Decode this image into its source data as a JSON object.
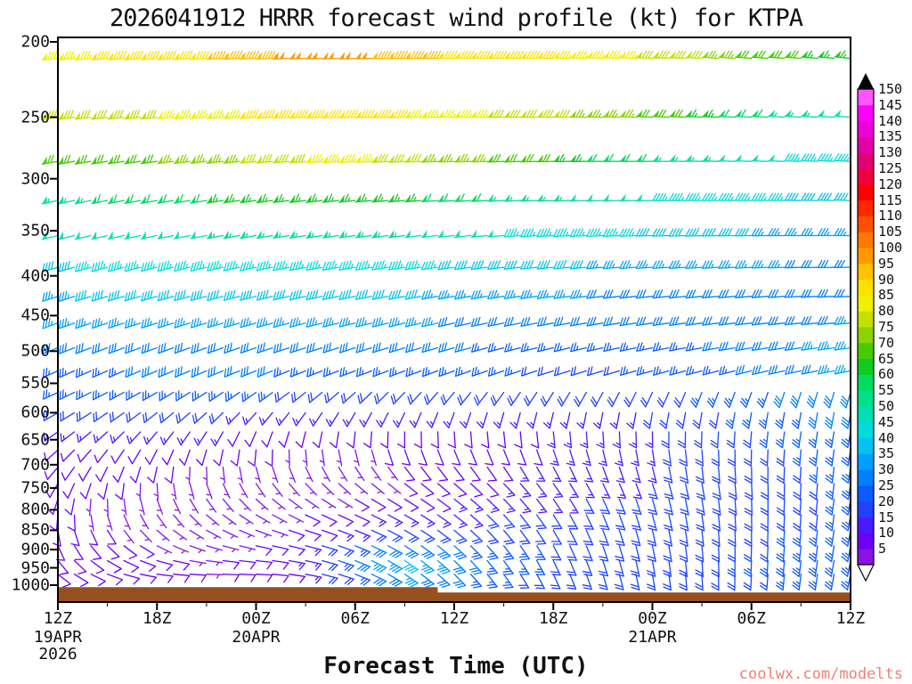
{
  "watermark": "coolwx.com/modelts",
  "chart_data": {
    "type": "heatmap",
    "subtype": "wind-barb-time-height-profile",
    "title": "2026041912 HRRR forecast wind profile (kt) for KTPA",
    "xlabel": "Forecast Time (UTC)",
    "units": "kt",
    "y_scale": "log-pressure",
    "y_ticks": [
      200,
      250,
      300,
      350,
      400,
      450,
      500,
      550,
      600,
      650,
      700,
      750,
      800,
      850,
      900,
      950,
      1000
    ],
    "x_ticks": [
      {
        "hour": 0,
        "label": "12Z"
      },
      {
        "hour": 6,
        "label": "18Z"
      },
      {
        "hour": 12,
        "label": "00Z"
      },
      {
        "hour": 18,
        "label": "06Z"
      },
      {
        "hour": 24,
        "label": "12Z"
      },
      {
        "hour": 30,
        "label": "18Z"
      },
      {
        "hour": 36,
        "label": "00Z"
      },
      {
        "hour": 42,
        "label": "06Z"
      },
      {
        "hour": 48,
        "label": "12Z"
      }
    ],
    "date_labels": [
      {
        "hour": 0,
        "lines": [
          "19APR",
          "2026"
        ]
      },
      {
        "hour": 12,
        "lines": [
          "20APR"
        ]
      },
      {
        "hour": 36,
        "lines": [
          "21APR"
        ]
      }
    ],
    "time_anchors_hours": [
      0,
      3,
      6,
      9,
      12,
      15,
      18,
      21,
      24,
      27,
      30,
      33,
      36,
      39,
      42,
      45,
      48
    ],
    "colorbar": {
      "units": "kt",
      "min": 5,
      "max": 150,
      "step": 5,
      "values": [
        5,
        10,
        15,
        20,
        25,
        30,
        35,
        40,
        45,
        50,
        55,
        60,
        65,
        70,
        75,
        80,
        85,
        90,
        95,
        100,
        105,
        110,
        115,
        120,
        125,
        130,
        135,
        140,
        145,
        150
      ],
      "colors": [
        "#8a14e6",
        "#6e00f5",
        "#4a1aff",
        "#2042ff",
        "#0b5bff",
        "#0080ff",
        "#00a0ff",
        "#00c3f0",
        "#00dcdc",
        "#00e0b4",
        "#00e08c",
        "#00dc5f",
        "#10cc20",
        "#46cc00",
        "#8cd400",
        "#c3e000",
        "#f0f000",
        "#ffe100",
        "#ffc100",
        "#ff9b00",
        "#ff7800",
        "#ff5000",
        "#ff2800",
        "#ff0000",
        "#ef0040",
        "#e30076",
        "#e300a8",
        "#ee00d8",
        "#ff00ff",
        "#ff55ff"
      ]
    },
    "surface": {
      "color": "#96501e",
      "segments": [
        {
          "from_hour": 0,
          "to_hour": 23,
          "top_hpa": 1006
        },
        {
          "from_hour": 23,
          "to_hour": 48,
          "top_hpa": 1022
        }
      ]
    },
    "levels": [
      {
        "p": 210,
        "speeds_kt": [
          85,
          88,
          90,
          92,
          95,
          100,
          102,
          95,
          92,
          90,
          88,
          85,
          82,
          78,
          72,
          68,
          65
        ],
        "dirs_deg": [
          264,
          265,
          265,
          266,
          267,
          268,
          268,
          269,
          270,
          270,
          271,
          272,
          272,
          273,
          274,
          274,
          275
        ]
      },
      {
        "p": 250,
        "speeds_kt": [
          78,
          80,
          82,
          85,
          88,
          90,
          90,
          88,
          85,
          82,
          80,
          76,
          72,
          66,
          60,
          55,
          50
        ],
        "dirs_deg": [
          262,
          263,
          264,
          265,
          266,
          267,
          268,
          268,
          269,
          270,
          270,
          271,
          272,
          272,
          273,
          274,
          274
        ]
      },
      {
        "p": 285,
        "speeds_kt": [
          68,
          70,
          72,
          75,
          78,
          82,
          84,
          80,
          76,
          72,
          68,
          62,
          58,
          54,
          50,
          47,
          45
        ],
        "dirs_deg": [
          260,
          261,
          262,
          263,
          264,
          265,
          266,
          267,
          268,
          268,
          269,
          270,
          270,
          271,
          272,
          272,
          273
        ]
      },
      {
        "p": 320,
        "speeds_kt": [
          56,
          58,
          60,
          62,
          64,
          66,
          66,
          64,
          60,
          57,
          54,
          51,
          48,
          46,
          44,
          42,
          40
        ],
        "dirs_deg": [
          258,
          259,
          260,
          261,
          262,
          263,
          264,
          265,
          266,
          267,
          268,
          268,
          269,
          270,
          270,
          271,
          272
        ]
      },
      {
        "p": 355,
        "speeds_kt": [
          48,
          50,
          51,
          52,
          54,
          55,
          55,
          53,
          50,
          48,
          46,
          44,
          42,
          40,
          38,
          36,
          35
        ],
        "dirs_deg": [
          256,
          257,
          258,
          259,
          260,
          261,
          262,
          263,
          264,
          265,
          266,
          267,
          268,
          268,
          269,
          270,
          270
        ]
      },
      {
        "p": 390,
        "speeds_kt": [
          42,
          43,
          44,
          45,
          46,
          46,
          46,
          44,
          42,
          40,
          39,
          37,
          36,
          35,
          34,
          32,
          30
        ],
        "dirs_deg": [
          254,
          255,
          256,
          257,
          258,
          259,
          260,
          261,
          262,
          263,
          264,
          265,
          266,
          266,
          267,
          268,
          269
        ]
      },
      {
        "p": 425,
        "speeds_kt": [
          37,
          38,
          39,
          40,
          40,
          40,
          40,
          38,
          37,
          35,
          34,
          32,
          31,
          30,
          30,
          30,
          30
        ],
        "dirs_deg": [
          252,
          253,
          254,
          255,
          256,
          257,
          258,
          259,
          260,
          261,
          262,
          263,
          264,
          264,
          265,
          266,
          267
        ]
      },
      {
        "p": 460,
        "speeds_kt": [
          33,
          34,
          35,
          35,
          36,
          36,
          35,
          34,
          32,
          31,
          30,
          29,
          29,
          29,
          30,
          31,
          33
        ],
        "dirs_deg": [
          250,
          251,
          252,
          253,
          254,
          255,
          256,
          256,
          257,
          258,
          259,
          260,
          261,
          262,
          263,
          264,
          265
        ]
      },
      {
        "p": 495,
        "speeds_kt": [
          30,
          30,
          31,
          31,
          31,
          31,
          30,
          29,
          28,
          27,
          26,
          26,
          26,
          27,
          29,
          32,
          34
        ],
        "dirs_deg": [
          248,
          249,
          250,
          250,
          251,
          252,
          252,
          253,
          254,
          255,
          256,
          257,
          258,
          259,
          260,
          261,
          262
        ]
      },
      {
        "p": 530,
        "speeds_kt": [
          27,
          27,
          28,
          28,
          28,
          27,
          26,
          25,
          24,
          23,
          22,
          22,
          23,
          25,
          28,
          31,
          34
        ],
        "dirs_deg": [
          246,
          246,
          247,
          247,
          248,
          248,
          249,
          249,
          250,
          251,
          252,
          253,
          254,
          255,
          256,
          258,
          259
        ]
      },
      {
        "p": 565,
        "speeds_kt": [
          23,
          23,
          24,
          24,
          23,
          22,
          21,
          20,
          19,
          18,
          18,
          19,
          21,
          23,
          26,
          29,
          32
        ],
        "dirs_deg": [
          245,
          243,
          240,
          238,
          235,
          232,
          228,
          224,
          220,
          216,
          212,
          208,
          205,
          202,
          200,
          198,
          196
        ]
      },
      {
        "p": 600,
        "speeds_kt": [
          19,
          19,
          19,
          18,
          17,
          16,
          15,
          14,
          13,
          14,
          15,
          16,
          18,
          21,
          24,
          27,
          30
        ],
        "dirs_deg": [
          240,
          236,
          232,
          228,
          222,
          216,
          210,
          205,
          200,
          196,
          193,
          191,
          190,
          190,
          190,
          190,
          190
        ]
      },
      {
        "p": 635,
        "speeds_kt": [
          15,
          14,
          14,
          13,
          12,
          11,
          10,
          10,
          10,
          11,
          13,
          15,
          17,
          19,
          22,
          25,
          27
        ],
        "dirs_deg": [
          235,
          228,
          220,
          212,
          203,
          194,
          186,
          180,
          176,
          174,
          174,
          176,
          179,
          182,
          185,
          188,
          190
        ]
      },
      {
        "p": 670,
        "speeds_kt": [
          12,
          11,
          10,
          9,
          8,
          7,
          7,
          8,
          9,
          11,
          13,
          15,
          17,
          19,
          21,
          23,
          25
        ],
        "dirs_deg": [
          228,
          218,
          207,
          196,
          185,
          175,
          166,
          160,
          158,
          158,
          161,
          166,
          171,
          176,
          181,
          185,
          189
        ]
      },
      {
        "p": 705,
        "speeds_kt": [
          10,
          9,
          8,
          7,
          6,
          6,
          6,
          8,
          10,
          12,
          14,
          16,
          17,
          19,
          20,
          22,
          24
        ],
        "dirs_deg": [
          220,
          206,
          192,
          178,
          165,
          154,
          146,
          142,
          142,
          146,
          152,
          159,
          166,
          173,
          179,
          184,
          188
        ]
      },
      {
        "p": 740,
        "speeds_kt": [
          9,
          8,
          7,
          6,
          5,
          5,
          6,
          8,
          10,
          13,
          15,
          16,
          18,
          19,
          20,
          22,
          23
        ],
        "dirs_deg": [
          210,
          193,
          176,
          160,
          146,
          136,
          130,
          128,
          131,
          137,
          145,
          154,
          162,
          170,
          177,
          183,
          188
        ]
      },
      {
        "p": 775,
        "speeds_kt": [
          8,
          7,
          6,
          5,
          5,
          6,
          8,
          10,
          13,
          15,
          17,
          18,
          19,
          20,
          21,
          22,
          23
        ],
        "dirs_deg": [
          198,
          178,
          160,
          144,
          132,
          124,
          120,
          122,
          128,
          136,
          146,
          155,
          164,
          171,
          178,
          184,
          189
        ]
      },
      {
        "p": 812,
        "speeds_kt": [
          8,
          7,
          6,
          5,
          5,
          8,
          12,
          15,
          17,
          18,
          19,
          20,
          20,
          21,
          22,
          22,
          23
        ],
        "dirs_deg": [
          185,
          163,
          144,
          130,
          120,
          115,
          115,
          120,
          128,
          138,
          148,
          157,
          165,
          172,
          179,
          184,
          189
        ]
      },
      {
        "p": 850,
        "speeds_kt": [
          9,
          8,
          6,
          5,
          6,
          10,
          16,
          22,
          22,
          21,
          20,
          20,
          21,
          21,
          22,
          23,
          23
        ],
        "dirs_deg": [
          170,
          148,
          130,
          118,
          110,
          108,
          112,
          120,
          130,
          140,
          150,
          159,
          167,
          174,
          180,
          185,
          190
        ]
      },
      {
        "p": 890,
        "speeds_kt": [
          10,
          9,
          7,
          6,
          8,
          14,
          26,
          32,
          28,
          24,
          22,
          21,
          21,
          22,
          22,
          23,
          24
        ],
        "dirs_deg": [
          155,
          133,
          116,
          106,
          102,
          104,
          112,
          122,
          132,
          142,
          152,
          161,
          168,
          175,
          181,
          186,
          190
        ]
      },
      {
        "p": 930,
        "speeds_kt": [
          10,
          10,
          8,
          7,
          9,
          16,
          30,
          38,
          32,
          25,
          22,
          21,
          21,
          22,
          23,
          23,
          24
        ],
        "dirs_deg": [
          140,
          120,
          105,
          97,
          96,
          102,
          112,
          124,
          134,
          144,
          154,
          162,
          170,
          176,
          182,
          187,
          191
        ]
      },
      {
        "p": 968,
        "speeds_kt": [
          8,
          9,
          9,
          7,
          9,
          14,
          26,
          33,
          28,
          23,
          21,
          20,
          20,
          21,
          22,
          23,
          23
        ],
        "dirs_deg": [
          128,
          110,
          97,
          92,
          93,
          101,
          112,
          124,
          135,
          145,
          155,
          163,
          170,
          177,
          183,
          187,
          191
        ]
      }
    ]
  }
}
